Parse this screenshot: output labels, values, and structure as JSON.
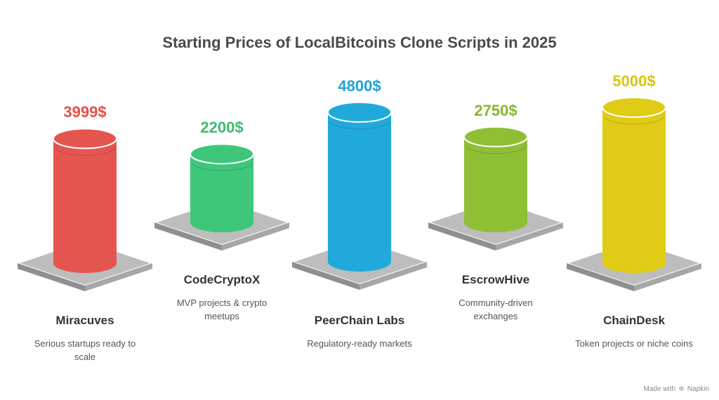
{
  "chart_data": {
    "type": "bar",
    "title": "Starting Prices of LocalBitcoins Clone Scripts in 2025",
    "categories": [
      "Miracuves",
      "CodeCryptoX",
      "PeerChain Labs",
      "EscrowHive",
      "ChainDesk"
    ],
    "values": [
      3999,
      2200,
      4800,
      2750,
      5000
    ],
    "labels": [
      "3999$",
      "2200$",
      "4800$",
      "2750$",
      "5000$"
    ],
    "descriptions": [
      "Serious startups ready to scale",
      "MVP projects & crypto meetups",
      "Regulatory-ready markets",
      "Community-driven exchanges",
      "Token projects or niche coins"
    ],
    "colors": [
      "#e55550",
      "#3ec77b",
      "#22a9dc",
      "#8ebf35",
      "#e0cb16"
    ],
    "label_colors": [
      "#e5504b",
      "#3dbd6f",
      "#1ea3d8",
      "#86b82e",
      "#d9c613"
    ]
  },
  "footer": {
    "made_with": "Made with",
    "brand": "Napkin"
  }
}
